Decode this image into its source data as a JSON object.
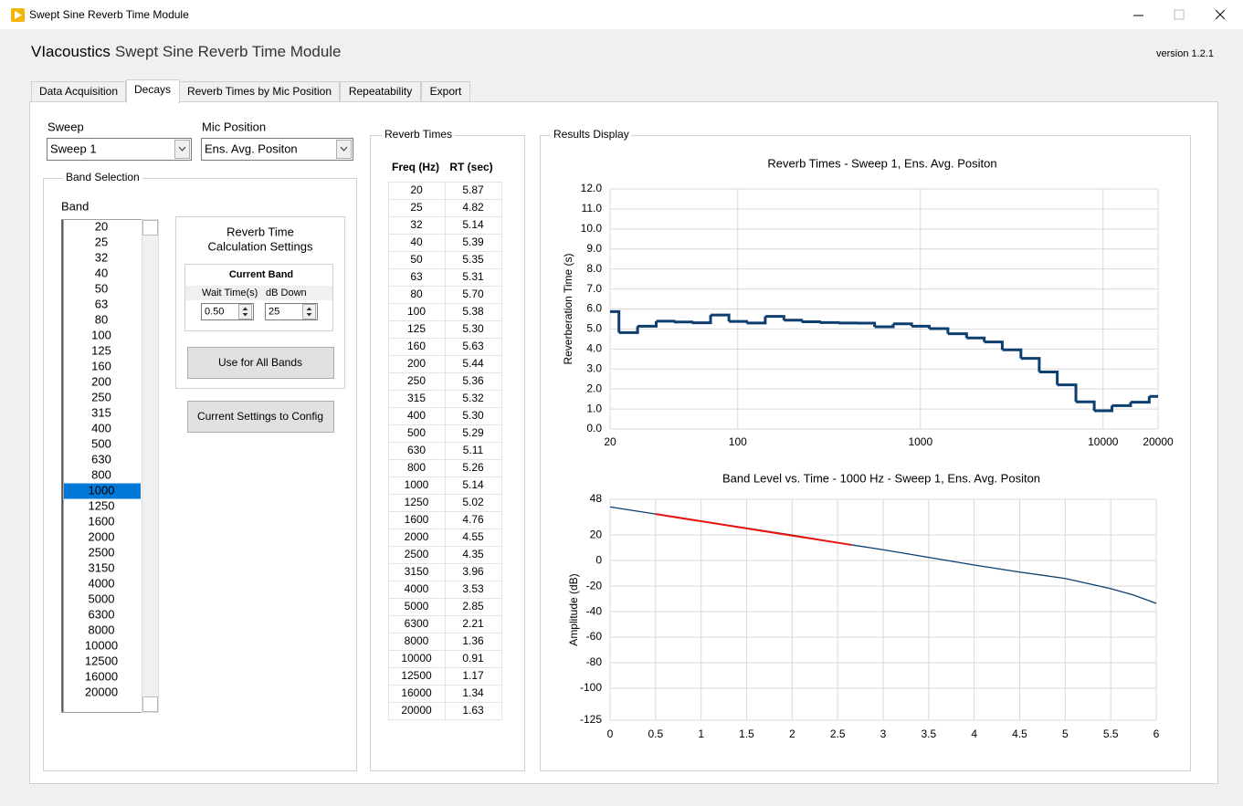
{
  "window": {
    "title": "Swept Sine Reverb Time Module"
  },
  "header": {
    "brand": "VIacoustics",
    "title": "Swept Sine Reverb Time Module",
    "version": "version 1.2.1"
  },
  "tabs": {
    "items": [
      "Data Acquisition",
      "Decays",
      "Reverb Times by Mic Position",
      "Repeatability",
      "Export"
    ],
    "active": 1
  },
  "sweep": {
    "label": "Sweep",
    "value": "Sweep 1"
  },
  "mic_position": {
    "label": "Mic Position",
    "value": "Ens. Avg. Positon"
  },
  "band_selection": {
    "title": "Band Selection",
    "label": "Band",
    "bands": [
      "20",
      "25",
      "32",
      "40",
      "50",
      "63",
      "80",
      "100",
      "125",
      "160",
      "200",
      "250",
      "315",
      "400",
      "500",
      "630",
      "800",
      "1000",
      "1250",
      "1600",
      "2000",
      "2500",
      "3150",
      "4000",
      "5000",
      "6300",
      "8000",
      "10000",
      "12500",
      "16000",
      "20000"
    ],
    "selected": 17
  },
  "settings": {
    "title": [
      "Reverb Time",
      "Calculation Settings"
    ],
    "current_band": "Current Band",
    "wait_label": "Wait Time(s)",
    "wait_value": "0.50",
    "db_label": "dB Down",
    "db_value": "25",
    "use_all_button": "Use for All Bands",
    "config_button": "Current Settings to Config"
  },
  "reverb_times": {
    "title": "Reverb Times",
    "headers": [
      "Freq (Hz)",
      "RT (sec)"
    ],
    "rows": [
      [
        "20",
        "5.87"
      ],
      [
        "25",
        "4.82"
      ],
      [
        "32",
        "5.14"
      ],
      [
        "40",
        "5.39"
      ],
      [
        "50",
        "5.35"
      ],
      [
        "63",
        "5.31"
      ],
      [
        "80",
        "5.70"
      ],
      [
        "100",
        "5.38"
      ],
      [
        "125",
        "5.30"
      ],
      [
        "160",
        "5.63"
      ],
      [
        "200",
        "5.44"
      ],
      [
        "250",
        "5.36"
      ],
      [
        "315",
        "5.32"
      ],
      [
        "400",
        "5.30"
      ],
      [
        "500",
        "5.29"
      ],
      [
        "630",
        "5.11"
      ],
      [
        "800",
        "5.26"
      ],
      [
        "1000",
        "5.14"
      ],
      [
        "1250",
        "5.02"
      ],
      [
        "1600",
        "4.76"
      ],
      [
        "2000",
        "4.55"
      ],
      [
        "2500",
        "4.35"
      ],
      [
        "3150",
        "3.96"
      ],
      [
        "4000",
        "3.53"
      ],
      [
        "5000",
        "2.85"
      ],
      [
        "6300",
        "2.21"
      ],
      [
        "8000",
        "1.36"
      ],
      [
        "10000",
        "0.91"
      ],
      [
        "12500",
        "1.17"
      ],
      [
        "16000",
        "1.34"
      ],
      [
        "20000",
        "1.63"
      ]
    ]
  },
  "results": {
    "title": "Results Display"
  },
  "chart_data": [
    {
      "type": "line",
      "step": true,
      "xscale": "log",
      "title": "Reverb Times - Sweep 1, Ens. Avg. Positon",
      "ylabel": "Reverberation Time (s)",
      "x": [
        20,
        25,
        32,
        40,
        50,
        63,
        80,
        100,
        125,
        160,
        200,
        250,
        315,
        400,
        500,
        630,
        800,
        1000,
        1250,
        1600,
        2000,
        2500,
        3150,
        4000,
        5000,
        6300,
        8000,
        10000,
        12500,
        16000,
        20000
      ],
      "series": [
        {
          "color": "#0c3e6f",
          "values": [
            5.87,
            4.82,
            5.14,
            5.39,
            5.35,
            5.31,
            5.7,
            5.38,
            5.3,
            5.63,
            5.44,
            5.36,
            5.32,
            5.3,
            5.29,
            5.11,
            5.26,
            5.14,
            5.02,
            4.76,
            4.55,
            4.35,
            3.96,
            3.53,
            2.85,
            2.21,
            1.36,
            0.91,
            1.17,
            1.34,
            1.63
          ]
        }
      ],
      "xlim": [
        20,
        20000
      ],
      "xticks": [
        20,
        100,
        1000,
        10000,
        20000
      ],
      "ylim": [
        0,
        12
      ],
      "yticks": [
        {
          "value": 0,
          "label": "0.0"
        },
        {
          "value": 1,
          "label": "1.0"
        },
        {
          "value": 2,
          "label": "2.0"
        },
        {
          "value": 3,
          "label": "3.0"
        },
        {
          "value": 4,
          "label": "4.0"
        },
        {
          "value": 5,
          "label": "5.0"
        },
        {
          "value": 6,
          "label": "6.0"
        },
        {
          "value": 7,
          "label": "7.0"
        },
        {
          "value": 8,
          "label": "8.0"
        },
        {
          "value": 9,
          "label": "9.0"
        },
        {
          "value": 10,
          "label": "10.0"
        },
        {
          "value": 11,
          "label": "11.0"
        },
        {
          "value": 12,
          "label": "12.0"
        }
      ],
      "grid": true
    },
    {
      "type": "line",
      "title": "Band Level vs. Time - 1000 Hz - Sweep 1, Ens. Avg. Positon",
      "ylabel": "Amplitude (dB)",
      "series": [
        {
          "color": "#0c3e6f",
          "x": [
            0,
            0.5,
            1,
            1.5,
            2,
            2.5,
            3,
            3.5,
            4,
            4.5,
            5,
            5.5,
            5.75,
            6
          ],
          "values": [
            42,
            36.5,
            31,
            25.5,
            20,
            14,
            8.5,
            2.5,
            -3.5,
            -9,
            -14,
            -22,
            -27,
            -33.5
          ]
        },
        {
          "color": "#e8130f",
          "x": [
            0.5,
            1,
            1.5,
            2,
            2.5,
            2.65
          ],
          "values": [
            36.5,
            30.8,
            25.2,
            19.6,
            14,
            12.3
          ]
        }
      ],
      "xlim": [
        0,
        6
      ],
      "xticks": [
        0,
        0.5,
        1,
        1.5,
        2,
        2.5,
        3,
        3.5,
        4,
        4.5,
        5,
        5.5,
        6
      ],
      "ylim": [
        -125,
        48
      ],
      "yticks": [
        -125,
        -100,
        -80,
        -60,
        -40,
        -20,
        0,
        20,
        48
      ],
      "grid": true
    }
  ]
}
